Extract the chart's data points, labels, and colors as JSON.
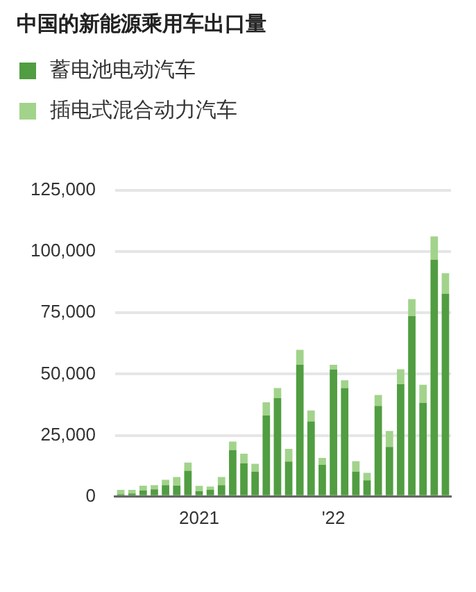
{
  "chart_data": {
    "type": "bar",
    "title": "中国的新能源乘用车出口量",
    "stacked": true,
    "legend": "top left",
    "categories": [
      null,
      null,
      null,
      null,
      null,
      null,
      null,
      "2021",
      null,
      null,
      null,
      null,
      null,
      null,
      null,
      null,
      null,
      null,
      null,
      "'22",
      null,
      null,
      null,
      null,
      null,
      null,
      null,
      null,
      null,
      null
    ],
    "series": [
      {
        "name": "蓄电池电动汽车",
        "color": "#519d41",
        "values": [
          1000,
          1300,
          2600,
          3000,
          4700,
          4500,
          10600,
          2200,
          2800,
          4700,
          19000,
          13600,
          10200,
          33100,
          40200,
          14300,
          53800,
          30700,
          13000,
          51900,
          44300,
          10200,
          6700,
          37000,
          20300,
          45900,
          73700,
          38300,
          96700,
          82800
        ]
      },
      {
        "name": "插电式混合动力汽车",
        "color": "#a2d38b",
        "values": [
          1800,
          1500,
          1900,
          1700,
          2200,
          3500,
          3300,
          2200,
          1300,
          3300,
          3500,
          3900,
          3200,
          5400,
          4100,
          5200,
          6100,
          4500,
          2800,
          1900,
          3200,
          4300,
          3000,
          4500,
          6500,
          6100,
          6900,
          7400,
          9500,
          8400
        ]
      }
    ],
    "ylim": [
      0,
      125000
    ],
    "yticks": [
      0,
      {
        "value": 25000,
        "label": "25,000"
      },
      {
        "value": 50000,
        "label": "50,000"
      },
      {
        "value": 75000,
        "label": "75,000"
      },
      {
        "value": 100000,
        "label": "100,000"
      },
      {
        "value": 125000,
        "label": "125,000"
      }
    ],
    "grid": "y"
  }
}
